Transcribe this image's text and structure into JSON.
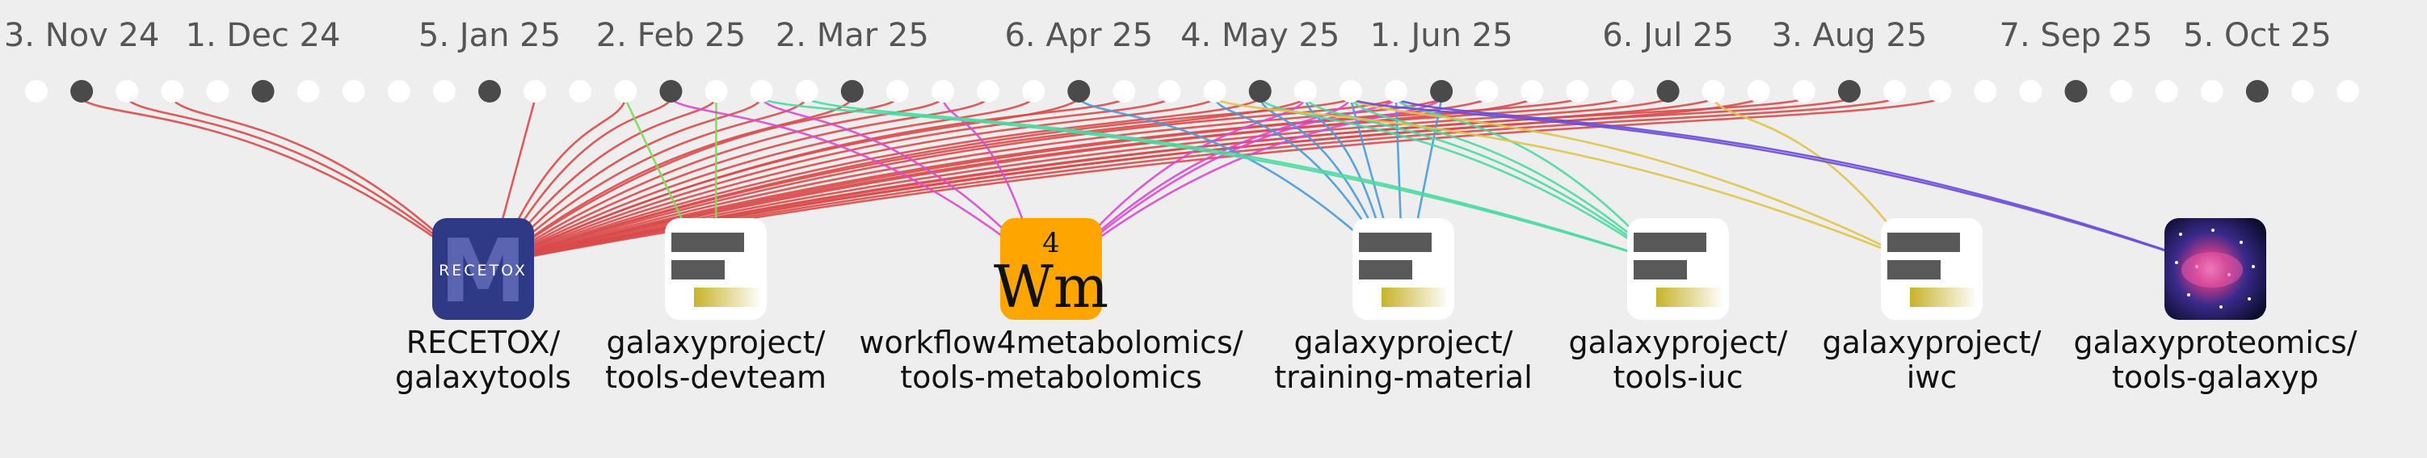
{
  "timeline": {
    "dot_count": 52,
    "filled_dots": [
      1,
      5,
      10,
      14,
      18,
      23,
      27,
      31,
      36,
      40,
      45,
      49
    ],
    "date_labels": [
      {
        "text": "3. Nov 24",
        "dot": 1
      },
      {
        "text": "1. Dec 24",
        "dot": 5
      },
      {
        "text": "5. Jan 25",
        "dot": 10
      },
      {
        "text": "2. Feb 25",
        "dot": 14
      },
      {
        "text": "2. Mar 25",
        "dot": 18
      },
      {
        "text": "6. Apr 25",
        "dot": 23
      },
      {
        "text": "4. May 25",
        "dot": 27
      },
      {
        "text": "1. Jun 25",
        "dot": 31
      },
      {
        "text": "6. Jul 25",
        "dot": 36
      },
      {
        "text": "3. Aug 25",
        "dot": 40
      },
      {
        "text": "7. Sep 25",
        "dot": 45
      },
      {
        "text": "5. Oct 25",
        "dot": 49
      }
    ]
  },
  "repos": [
    {
      "id": "recetox",
      "line1": "RECETOX/",
      "line2": "galaxytools",
      "logo": "recetox-logo",
      "logo_text": "RECETOX",
      "logo_letter": "M",
      "color": "#d94a4a"
    },
    {
      "id": "tools-devteam",
      "line1": "galaxyproject/",
      "line2": "tools-devteam",
      "logo": "galaxy-logo",
      "color": "#7dd95a"
    },
    {
      "id": "w4m",
      "line1": "workflow4metabolomics/",
      "line2": "tools-metabolomics",
      "logo": "w4m-logo",
      "logo_text": "Wm",
      "logo_sup": "4",
      "color": "#d94ad0"
    },
    {
      "id": "training-material",
      "line1": "galaxyproject/",
      "line2": "training-material",
      "logo": "galaxy-logo",
      "color": "#4a9ad9"
    },
    {
      "id": "tools-iuc",
      "line1": "galaxyproject/",
      "line2": "tools-iuc",
      "logo": "galaxy-logo",
      "color": "#4ad9a0"
    },
    {
      "id": "iwc",
      "line1": "galaxyproject/",
      "line2": "iwc",
      "logo": "galaxy-logo",
      "color": "#e0c24a"
    },
    {
      "id": "tools-galaxyp",
      "line1": "galaxyproteomics/",
      "line2": "tools-galaxyp",
      "logo": "galaxy-proteomics-logo",
      "color": "#6a4ad9"
    }
  ],
  "links": [
    {
      "repo": 0,
      "dots": [
        1,
        2,
        3,
        11,
        13,
        14,
        15,
        16,
        17,
        18,
        19,
        20,
        21,
        22,
        23,
        24,
        25,
        26,
        27,
        28,
        29,
        30,
        31,
        32,
        33,
        34,
        35,
        36,
        37,
        38,
        39,
        40,
        41,
        42
      ]
    },
    {
      "repo": 1,
      "dots": [
        13,
        15
      ]
    },
    {
      "repo": 2,
      "dots": [
        14,
        16,
        20,
        28,
        29,
        30,
        31
      ]
    },
    {
      "repo": 3,
      "dots": [
        23,
        26,
        27,
        28,
        29,
        30,
        31
      ]
    },
    {
      "repo": 4,
      "dots": [
        16,
        17,
        27,
        28,
        29,
        30
      ]
    },
    {
      "repo": 5,
      "dots": [
        26,
        29,
        37
      ]
    },
    {
      "repo": 6,
      "dots": [
        29,
        30
      ]
    }
  ]
}
